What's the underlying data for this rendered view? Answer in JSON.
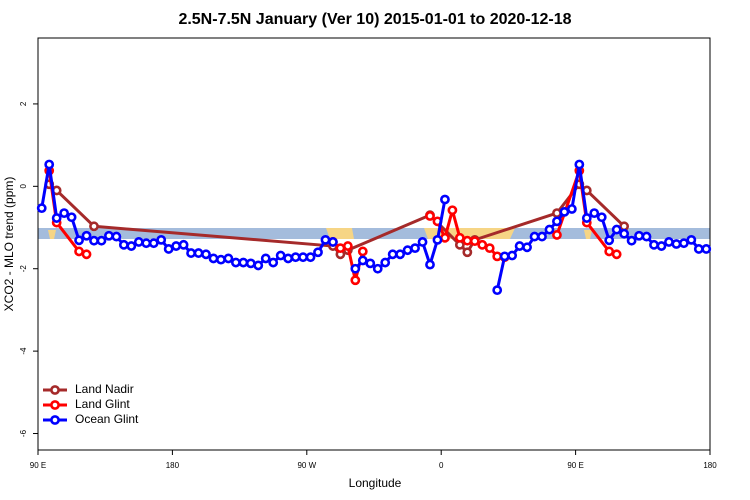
{
  "chart_data": {
    "type": "line",
    "title": "2.5N-7.5N January (Ver 10)   2015-01-01 to 2020-12-18",
    "x_label": "Longitude",
    "y_label": "XCO2 - MLO trend (ppm)",
    "xlim": [
      90,
      540
    ],
    "ylim": [
      -6.4,
      3.6
    ],
    "xticks": [
      {
        "value": 90,
        "label": "90 E"
      },
      {
        "value": 180,
        "label": "180"
      },
      {
        "value": 270,
        "label": "90 W"
      },
      {
        "value": 360,
        "label": "0"
      },
      {
        "value": 450,
        "label": "90 E"
      },
      {
        "value": 540,
        "label": "180"
      }
    ],
    "yticks": [
      -6,
      -4,
      -2,
      0,
      2
    ],
    "legend": "bottomleft",
    "series": [
      {
        "name": "Land Nadir",
        "color": "#a52a2a",
        "x": [
          97.5,
          102.5,
          127.5,
          287.5,
          292.5,
          297.5,
          352.5,
          372.5,
          377.5,
          382.5,
          437.5,
          452.5,
          457.5,
          482.5
        ],
        "values": [
          0.05,
          -0.1,
          -0.97,
          -1.45,
          -1.65,
          -1.55,
          -0.7,
          -1.42,
          -1.6,
          -1.3,
          -0.65,
          0.05,
          -0.1,
          -0.97
        ]
      },
      {
        "name": "Land Glint",
        "color": "#ff0000",
        "x": [
          97.5,
          102.5,
          117.5,
          122.5,
          200,
          287.5,
          292.5,
          297.5,
          302.5,
          307.5,
          330,
          352.5,
          357.5,
          362.5,
          367.5,
          372.5,
          377.5,
          382.5,
          387.5,
          392.5,
          397.5,
          402.5,
          420,
          437.5,
          452.5,
          457.5,
          472.5,
          477.5
        ],
        "values": [
          0.38,
          -0.88,
          -1.58,
          -1.65,
          null,
          -1.35,
          -1.5,
          -1.45,
          -2.28,
          -1.58,
          null,
          -0.72,
          -0.85,
          -1.25,
          -0.58,
          -1.25,
          -1.32,
          -1.33,
          -1.42,
          -1.5,
          -1.7,
          -1.72,
          null,
          -1.18,
          0.38,
          -0.88,
          -1.58,
          -1.65
        ]
      },
      {
        "name": "Ocean Glint",
        "color": "#0000ff",
        "x": [
          92.5,
          97.5,
          102.5,
          107.5,
          112.5,
          117.5,
          122.5,
          127.5,
          132.5,
          137.5,
          142.5,
          147.5,
          152.5,
          157.5,
          162.5,
          167.5,
          172.5,
          177.5,
          182.5,
          187.5,
          192.5,
          197.5,
          202.5,
          207.5,
          212.5,
          217.5,
          222.5,
          227.5,
          232.5,
          237.5,
          242.5,
          247.5,
          252.5,
          257.5,
          262.5,
          267.5,
          272.5,
          277.5,
          282.5,
          287.5,
          295,
          302.5,
          307.5,
          312.5,
          317.5,
          322.5,
          327.5,
          332.5,
          337.5,
          342.5,
          347.5,
          352.5,
          357.5,
          362.5,
          380,
          397.5,
          402.5,
          407.5,
          412.5,
          417.5,
          422.5,
          427.5,
          432.5,
          437.5,
          442.5,
          447.5,
          452.5,
          457.5,
          462.5,
          467.5,
          472.5,
          477.5,
          482.5,
          487.5,
          492.5,
          497.5,
          502.5,
          507.5,
          512.5,
          517.5,
          522.5,
          527.5,
          532.5,
          537.5
        ],
        "values": [
          -0.53,
          0.53,
          -0.77,
          -0.65,
          -0.75,
          -1.31,
          -1.2,
          -1.32,
          -1.32,
          -1.2,
          -1.22,
          -1.42,
          -1.45,
          -1.35,
          -1.38,
          -1.38,
          -1.3,
          -1.52,
          -1.45,
          -1.42,
          -1.62,
          -1.62,
          -1.65,
          -1.75,
          -1.78,
          -1.75,
          -1.85,
          -1.85,
          -1.87,
          -1.92,
          -1.75,
          -1.85,
          -1.68,
          -1.75,
          -1.72,
          -1.72,
          -1.72,
          -1.6,
          -1.3,
          -1.35,
          null,
          -2.0,
          -1.8,
          -1.87,
          -2.0,
          -1.85,
          -1.65,
          -1.65,
          -1.55,
          -1.5,
          -1.35,
          -1.9,
          -1.3,
          -0.32,
          null,
          -2.52,
          -1.7,
          -1.68,
          -1.45,
          -1.48,
          -1.22,
          -1.22,
          -1.05,
          -0.85,
          -0.62,
          -0.55,
          0.53,
          -0.77,
          -0.65,
          -0.75,
          -1.31,
          -1.05,
          -1.15,
          -1.32,
          -1.2,
          -1.22,
          -1.42,
          -1.45,
          -1.35,
          -1.4,
          -1.38,
          -1.3,
          -1.52,
          -1.52
        ]
      }
    ]
  }
}
